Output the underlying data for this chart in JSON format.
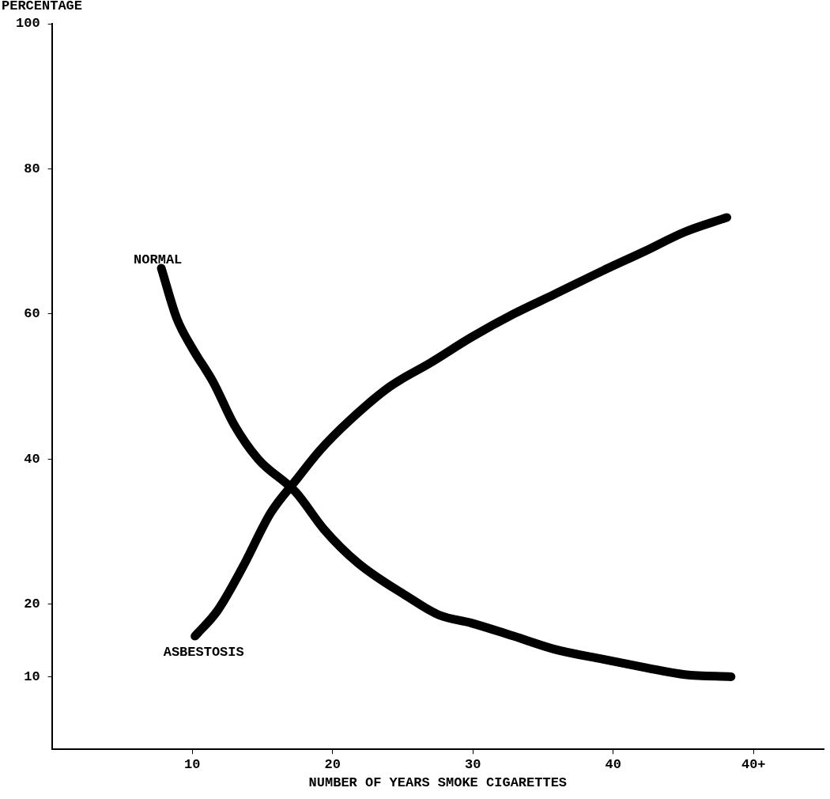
{
  "chart_data": {
    "type": "line",
    "xlabel": "NUMBER OF YEARS SMOKE CIGARETTES",
    "ylabel": "PERCENTAGE",
    "xlim": [
      0,
      55
    ],
    "xticks": [
      10,
      20,
      30,
      40,
      {
        "value": 50,
        "label": "40+"
      }
    ],
    "ylim": [
      0,
      100
    ],
    "yticks": [
      10,
      20,
      40,
      60,
      80,
      100
    ],
    "grid": false,
    "legend": false,
    "marker": "none",
    "line_style": "solid",
    "series": [
      {
        "name": "NORMAL",
        "color": "#000000",
        "x": [
          7.8,
          8.9,
          10,
          11.5,
          13,
          14.7,
          17.4,
          19.4,
          21.8,
          25.3,
          27.6,
          29.9,
          32.9,
          35.8,
          39.3,
          42.2,
          45.1,
          48.4
        ],
        "values": [
          66.3,
          59.4,
          55.3,
          50.6,
          44.7,
          40,
          35.4,
          30.3,
          25.7,
          21.1,
          18.5,
          17.4,
          15.6,
          13.8,
          12.4,
          11.3,
          10.3,
          10
        ]
      },
      {
        "name": "ASBESTOSIS",
        "color": "#000000",
        "x": [
          10.2,
          11.8,
          13.6,
          15.6,
          17.4,
          19.1,
          21.2,
          24.1,
          27,
          29.9,
          32.9,
          35.8,
          39.3,
          42.2,
          45.1,
          48.1
        ],
        "values": [
          15.6,
          19.1,
          25.1,
          32.6,
          37.1,
          41.2,
          45.3,
          50,
          53.3,
          56.8,
          60,
          62.7,
          66,
          68.6,
          71.3,
          73.3
        ]
      }
    ]
  }
}
